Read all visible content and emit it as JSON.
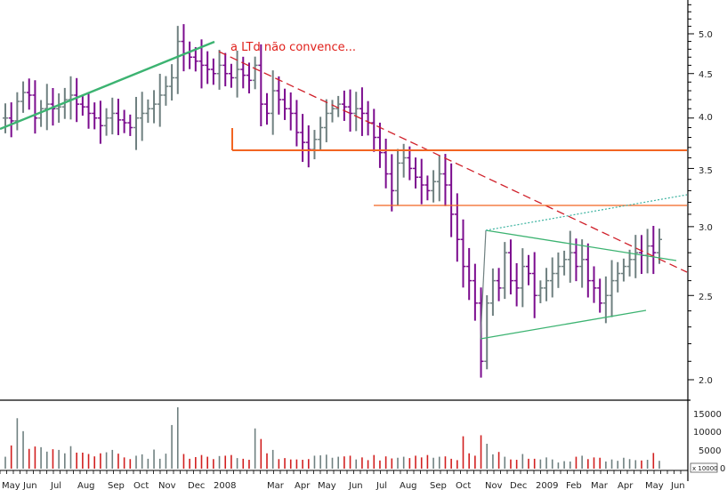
{
  "chart_data": [
    {
      "type": "ohlc",
      "title": "",
      "annotation": "a LTd não convence...",
      "y_scale": "log",
      "ylim": [
        1.85,
        5.5
      ],
      "y_ticks": [
        "2.0",
        "2.5",
        "3.0",
        "3.5",
        "4.0",
        "4.5",
        "5.0"
      ],
      "x_ticks": [
        "May",
        "Jun",
        "Jul",
        "Aug",
        "Sep",
        "Oct",
        "Nov",
        "Dec",
        "2008",
        "Mar",
        "Apr",
        "May",
        "Jun",
        "Jul",
        "Aug",
        "Sep",
        "Oct",
        "Nov",
        "Dec",
        "2009",
        "Feb",
        "Mar",
        "Apr",
        "May",
        "Jun"
      ],
      "colors": {
        "up": "#6f8080",
        "down": "#7b0c8e",
        "support": "#f26522",
        "downtrend": "#d0202a",
        "uptrend": "#3cb371"
      },
      "bars_weekly_close_estimate": [
        4.0,
        3.97,
        4.18,
        4.28,
        4.25,
        4.0,
        4.1,
        4.15,
        4.1,
        4.12,
        4.2,
        4.25,
        4.15,
        4.12,
        4.05,
        4.0,
        3.92,
        4.0,
        4.05,
        3.98,
        3.95,
        3.9,
        4.0,
        4.05,
        4.1,
        4.15,
        4.25,
        4.35,
        4.45,
        4.9,
        4.75,
        4.7,
        4.65,
        4.6,
        4.55,
        4.5,
        4.6,
        4.5,
        4.45,
        4.55,
        4.48,
        4.42,
        4.6,
        4.15,
        4.05,
        4.3,
        4.2,
        4.1,
        4.05,
        3.85,
        3.75,
        3.68,
        3.78,
        3.9,
        4.05,
        4.1,
        4.15,
        4.12,
        4.05,
        4.1,
        4.05,
        3.95,
        3.8,
        3.65,
        3.45,
        3.3,
        3.55,
        3.6,
        3.5,
        3.42,
        3.35,
        3.3,
        3.38,
        3.45,
        3.35,
        3.1,
        2.9,
        2.7,
        2.6,
        2.45,
        2.1,
        2.45,
        2.6,
        2.55,
        2.8,
        2.6,
        2.55,
        2.7,
        2.65,
        2.5,
        2.55,
        2.6,
        2.65,
        2.7,
        2.75,
        2.8,
        2.7,
        2.75,
        2.6,
        2.55,
        2.45,
        2.5,
        2.6,
        2.65,
        2.7,
        2.75,
        2.8,
        2.78,
        2.85,
        2.8,
        2.9
      ]
    },
    {
      "type": "bar",
      "title": "",
      "y_ticks": [
        "5000",
        "10000",
        "15000"
      ],
      "y_unit_label": "x 10000",
      "y_zero_label": "0",
      "ylim": [
        0,
        18000
      ],
      "volume_estimate": [
        3500,
        6800,
        14800,
        11000,
        5800,
        6500,
        6300,
        5000,
        5700,
        5500,
        4500,
        6600,
        4700,
        4700,
        4300,
        3600,
        4500,
        4800,
        5500,
        4400,
        3300,
        2800,
        3800,
        4200,
        2900,
        5600,
        2900,
        4400,
        12800,
        18000,
        4300,
        2900,
        3400,
        4000,
        3500,
        2800,
        3700,
        3800,
        4000,
        3100,
        2900,
        2600,
        11800,
        8700,
        4500,
        5500,
        2800,
        3100,
        2700,
        2700,
        2600,
        2800,
        3800,
        3900,
        4100,
        3200,
        3500,
        3600,
        3800,
        2700,
        3300,
        2500,
        4000,
        2400,
        3600,
        3000,
        3200,
        3500,
        3100,
        3800,
        3300,
        4000,
        3200,
        3500,
        3600,
        2900,
        2500,
        9500,
        4500,
        3800,
        9800,
        7300,
        4200,
        4900,
        3500,
        2700,
        2600,
        4300,
        2900,
        2900,
        2700,
        3300,
        2700,
        1800,
        2200,
        2100,
        3500,
        3800,
        2800,
        3300,
        3200,
        2100,
        2700,
        2300,
        3200,
        2800,
        2500,
        2400,
        2600,
        4600,
        2300
      ]
    }
  ]
}
